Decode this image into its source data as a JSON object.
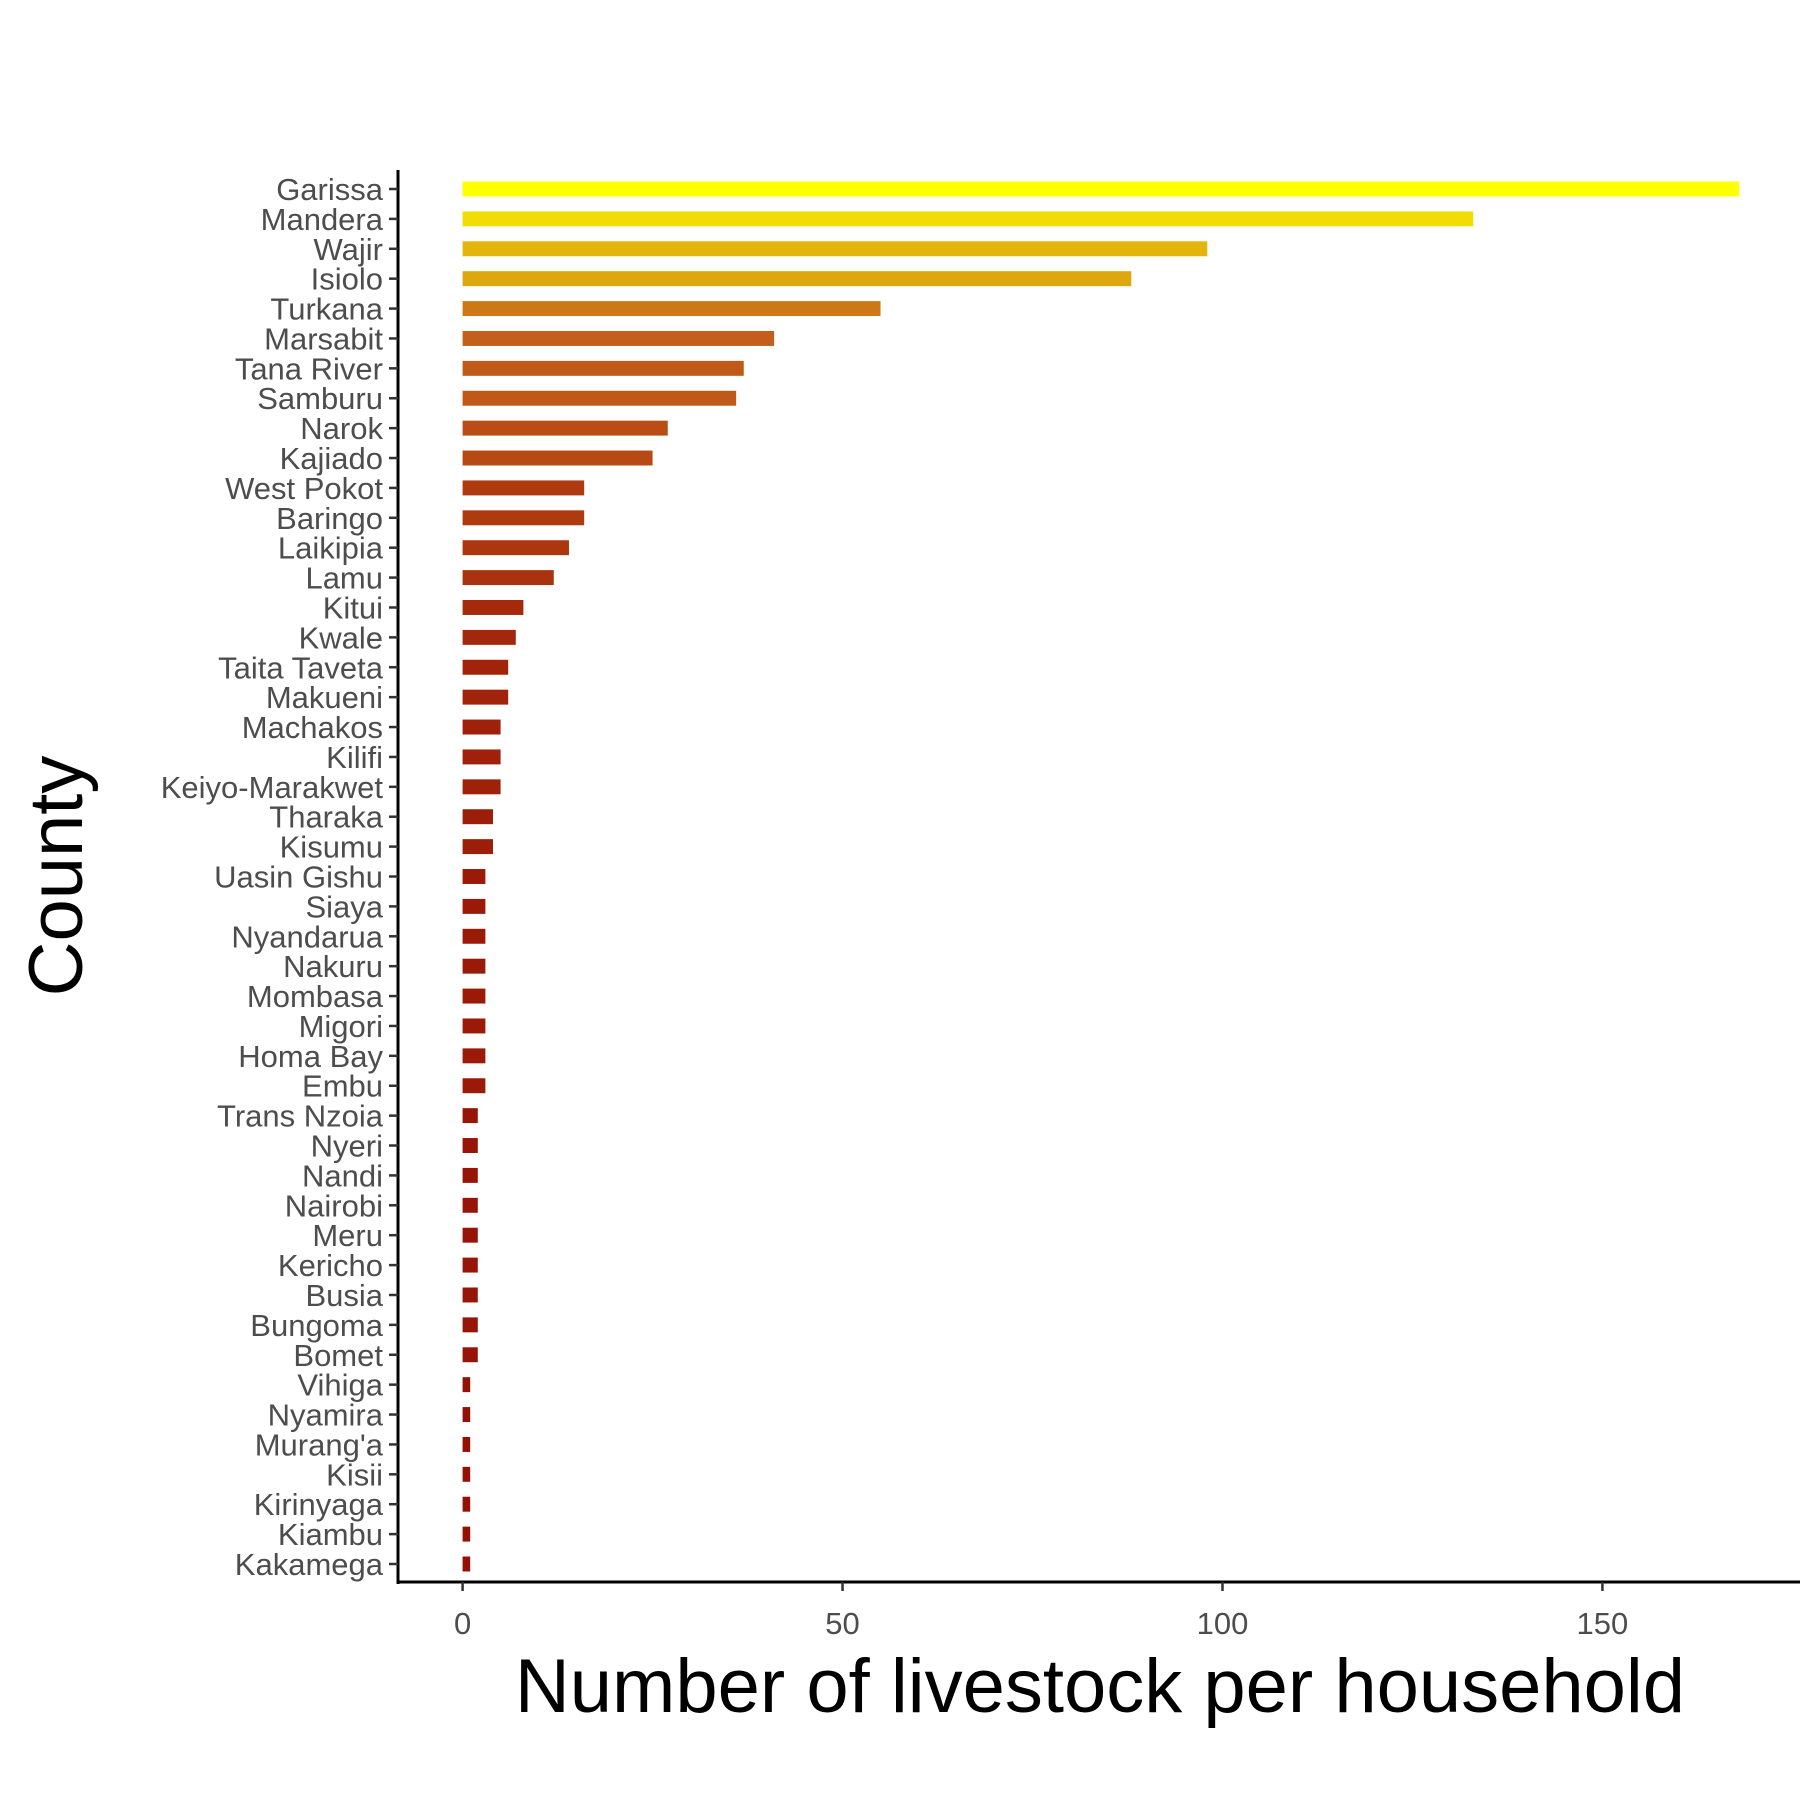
{
  "chart_data": {
    "type": "bar",
    "orientation": "horizontal",
    "xlabel": "Number of livestock per household",
    "ylabel": "County",
    "xlim": [
      -8.5,
      176
    ],
    "xticks": [
      0,
      50,
      100,
      150
    ],
    "grid": false,
    "legend": "none",
    "color_scale": {
      "low": "#8B0000",
      "mid": "#C4601A",
      "high": "#FFFF00"
    },
    "categories": [
      "Garissa",
      "Mandera",
      "Wajir",
      "Isiolo",
      "Turkana",
      "Marsabit",
      "Tana River",
      "Samburu",
      "Narok",
      "Kajiado",
      "West Pokot",
      "Baringo",
      "Laikipia",
      "Lamu",
      "Kitui",
      "Kwale",
      "Taita Taveta",
      "Makueni",
      "Machakos",
      "Kilifi",
      "Keiyo-Marakwet",
      "Tharaka",
      "Kisumu",
      "Uasin Gishu",
      "Siaya",
      "Nyandarua",
      "Nakuru",
      "Mombasa",
      "Migori",
      "Homa Bay",
      "Embu",
      "Trans Nzoia",
      "Nyeri",
      "Nandi",
      "Nairobi",
      "Meru",
      "Kericho",
      "Busia",
      "Bungoma",
      "Bomet",
      "Vihiga",
      "Nyamira",
      "Murang'a",
      "Kisii",
      "Kirinyaga",
      "Kiambu",
      "Kakamega"
    ],
    "values": [
      168,
      133,
      98,
      88,
      55,
      41,
      37,
      36,
      27,
      25,
      16,
      16,
      14,
      12,
      8,
      7,
      6,
      6,
      5,
      5,
      5,
      4,
      4,
      3,
      3,
      3,
      3,
      3,
      3,
      3,
      3,
      2,
      2,
      2,
      2,
      2,
      2,
      2,
      2,
      2,
      1,
      1,
      1,
      1,
      1,
      1,
      1
    ]
  }
}
